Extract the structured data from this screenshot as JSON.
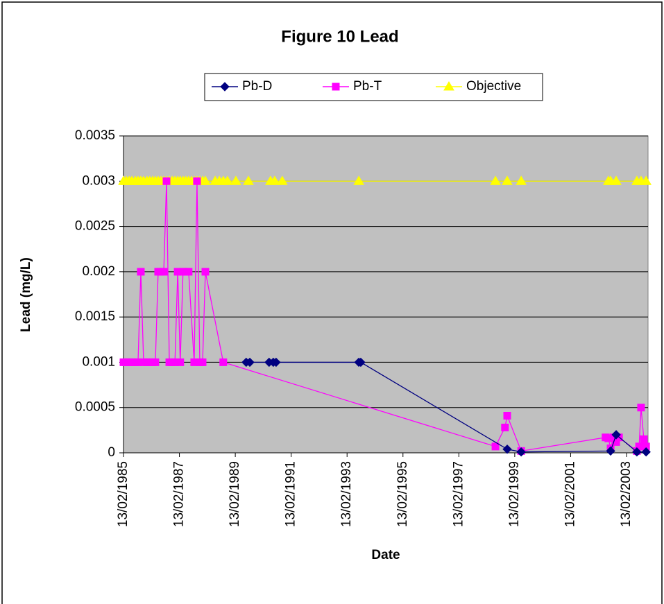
{
  "chart_data": {
    "type": "line",
    "title": "Figure 10 Lead",
    "x_label": "Date",
    "y_label": "Lead (mg/L)",
    "xlim": [
      1985.12,
      2003.89
    ],
    "ylim": [
      0,
      0.0035
    ],
    "xticks": [
      {
        "value": 1985.12,
        "label": "13/02/1985"
      },
      {
        "value": 1987.12,
        "label": "13/02/1987"
      },
      {
        "value": 1989.12,
        "label": "13/02/1989"
      },
      {
        "value": 1991.12,
        "label": "13/02/1991"
      },
      {
        "value": 1993.12,
        "label": "13/02/1993"
      },
      {
        "value": 1995.12,
        "label": "13/02/1995"
      },
      {
        "value": 1997.12,
        "label": "13/02/1997"
      },
      {
        "value": 1999.12,
        "label": "13/02/1999"
      },
      {
        "value": 2001.12,
        "label": "13/02/2001"
      },
      {
        "value": 2003.12,
        "label": "13/02/2003"
      }
    ],
    "yticks": [
      0,
      0.0005,
      0.001,
      0.0015,
      0.002,
      0.0025,
      0.003,
      0.0035
    ],
    "grid": true,
    "legend": "top",
    "series": [
      {
        "name": "Pb-D",
        "color": "#000080",
        "marker": "diamond",
        "x": [
          1989.51,
          1989.64,
          1990.33,
          1990.48,
          1990.58,
          1993.54,
          1993.61,
          1998.85,
          1999.35,
          2002.55,
          2002.75,
          2003.49,
          2003.82
        ],
        "values": [
          0.001,
          0.001,
          0.001,
          0.001,
          0.001,
          0.001,
          0.001,
          4e-05,
          1e-05,
          2e-05,
          0.0002,
          1e-05,
          1e-05
        ]
      },
      {
        "name": "Pb-T",
        "color": "#ff00ff",
        "marker": "square",
        "x": [
          1985.12,
          1985.22,
          1985.32,
          1985.42,
          1985.54,
          1985.64,
          1985.74,
          1985.84,
          1985.96,
          1986.06,
          1986.16,
          1986.26,
          1986.36,
          1986.46,
          1986.56,
          1986.66,
          1986.76,
          1986.86,
          1986.96,
          1987.06,
          1987.15,
          1987.25,
          1987.35,
          1987.45,
          1987.65,
          1987.75,
          1987.85,
          1987.95,
          1988.05,
          1988.69,
          1998.43,
          1998.77,
          1998.85,
          1999.35,
          2002.37,
          2002.47,
          2002.55,
          2002.65,
          2002.75,
          2002.85,
          2003.49,
          2003.57,
          2003.64,
          2003.74,
          2003.82
        ],
        "values": [
          0.001,
          0.001,
          0.001,
          0.001,
          0.001,
          0.001,
          0.002,
          0.001,
          0.001,
          0.001,
          0.001,
          0.001,
          0.002,
          0.002,
          0.002,
          0.003,
          0.001,
          0.001,
          0.001,
          0.002,
          0.001,
          0.002,
          0.002,
          0.002,
          0.001,
          0.003,
          0.001,
          0.001,
          0.002,
          0.001,
          7e-05,
          0.00028,
          0.00041,
          2e-05,
          0.00017,
          0.00016,
          5e-05,
          0.00017,
          0.00012,
          0.00017,
          2e-05,
          7e-05,
          0.0005,
          0.00015,
          7e-05
        ]
      },
      {
        "name": "Objective",
        "color": "#ffff00",
        "marker": "triangle",
        "x": [
          1985.12,
          1985.22,
          1985.32,
          1985.42,
          1985.54,
          1985.64,
          1985.74,
          1985.84,
          1985.96,
          1986.06,
          1986.16,
          1986.26,
          1986.36,
          1986.46,
          1986.56,
          1986.66,
          1986.76,
          1986.86,
          1986.96,
          1987.06,
          1987.15,
          1987.25,
          1987.35,
          1987.45,
          1987.55,
          1987.65,
          1987.75,
          1987.85,
          1987.95,
          1988.05,
          1988.4,
          1988.55,
          1988.69,
          1988.84,
          1989.14,
          1989.59,
          1990.38,
          1990.53,
          1990.8,
          1993.54,
          1998.43,
          1998.85,
          1999.35,
          2002.47,
          2002.55,
          2002.75,
          2003.49,
          2003.64,
          2003.82
        ],
        "values": [
          0.003,
          0.003,
          0.003,
          0.003,
          0.003,
          0.003,
          0.003,
          0.003,
          0.003,
          0.003,
          0.003,
          0.003,
          0.003,
          0.003,
          0.003,
          0.003,
          0.003,
          0.003,
          0.003,
          0.003,
          0.003,
          0.003,
          0.003,
          0.003,
          0.003,
          0.003,
          0.003,
          0.003,
          0.003,
          0.003,
          0.003,
          0.003,
          0.003,
          0.003,
          0.003,
          0.003,
          0.003,
          0.003,
          0.003,
          0.003,
          0.003,
          0.003,
          0.003,
          0.003,
          0.003,
          0.003,
          0.003,
          0.003,
          0.003
        ]
      }
    ]
  }
}
